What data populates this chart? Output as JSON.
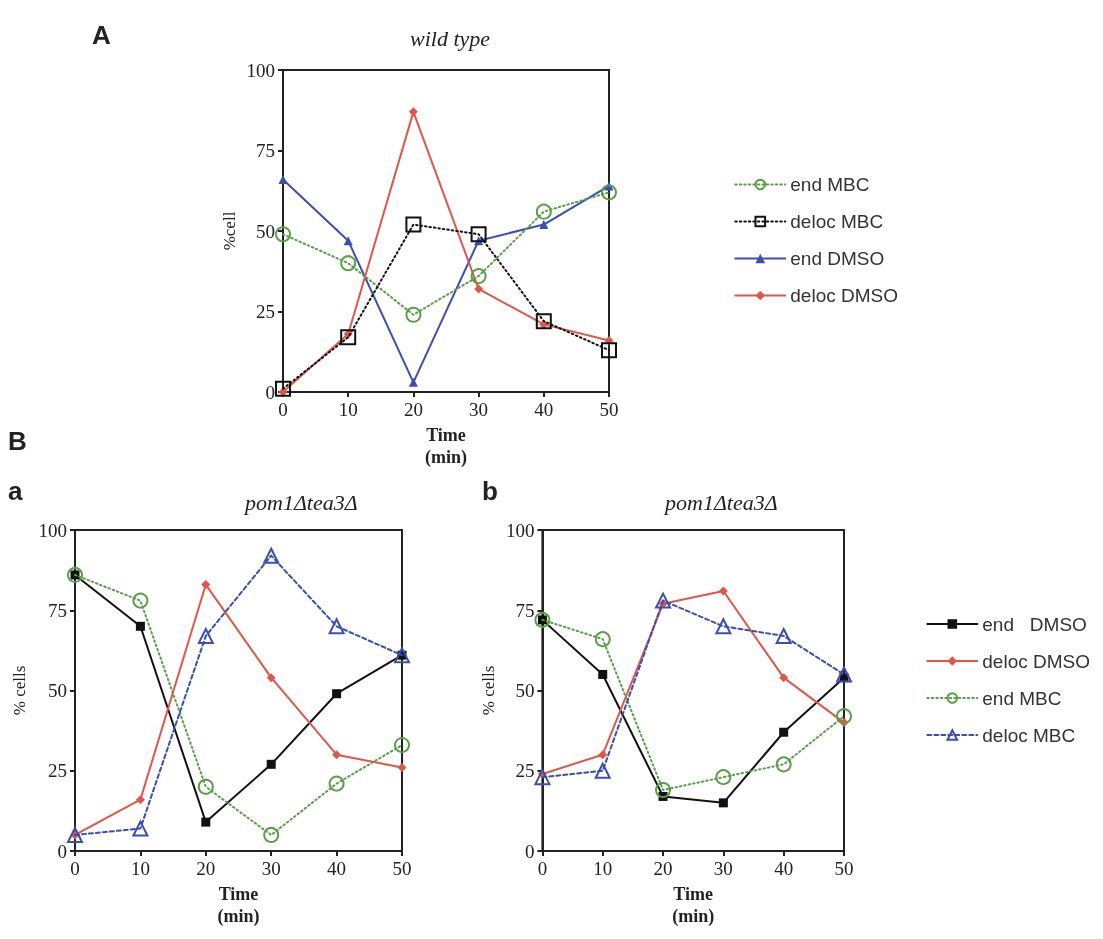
{
  "chart_data": [
    {
      "type": "line",
      "title": "wild type",
      "xlabel": "Time\n(min)",
      "ylabel": "%cell",
      "annotations": [
        "A"
      ],
      "x": [
        0,
        10,
        20,
        30,
        40,
        50
      ],
      "xlim": [
        0,
        50
      ],
      "xticks": [
        0,
        10,
        20,
        30,
        40,
        50
      ],
      "ylim": [
        0,
        100
      ],
      "yticks": [
        0,
        25,
        50,
        75,
        100
      ],
      "grid": false,
      "legend": "right",
      "series": [
        {
          "name": "end MBC",
          "color": "#5a9e4a",
          "marker": "circle",
          "line_style": "dotted",
          "values": [
            49,
            40,
            24,
            36,
            56,
            62
          ]
        },
        {
          "name": "deloc MBC",
          "color": "#111111",
          "marker": "square",
          "line_style": "dotted",
          "values": [
            1,
            17,
            52,
            49,
            22,
            13
          ]
        },
        {
          "name": "end DMSO",
          "color": "#3a4fb0",
          "marker": "triangle",
          "line_style": "solid",
          "values": [
            66,
            47,
            3,
            47,
            52,
            64
          ]
        },
        {
          "name": "deloc DMSO",
          "color": "#e0574a",
          "marker": "diamond",
          "line_style": "solid",
          "values": [
            0,
            18,
            87,
            32,
            21,
            16
          ]
        }
      ]
    },
    {
      "type": "line",
      "title": "pom1Δtea3Δ",
      "xlabel": "Time\n(min)",
      "ylabel": "% cells",
      "annotations": [
        "B",
        "a"
      ],
      "x": [
        0,
        10,
        20,
        30,
        40,
        50
      ],
      "xlim": [
        0,
        50
      ],
      "xticks": [
        0,
        10,
        20,
        30,
        40,
        50
      ],
      "ylim": [
        0,
        100
      ],
      "yticks": [
        0,
        25,
        50,
        75,
        100
      ],
      "grid": false,
      "legend": false,
      "series": [
        {
          "color": "#111111",
          "marker": "square",
          "line_style": "solid",
          "values": [
            86,
            70,
            9,
            27,
            49,
            61
          ]
        },
        {
          "color": "#e0574a",
          "marker": "diamond",
          "line_style": "solid",
          "values": [
            5,
            16,
            83,
            54,
            30,
            26
          ]
        },
        {
          "color": "#5a9e4a",
          "marker": "circle",
          "line_style": "dotted",
          "values": [
            86,
            78,
            20,
            5,
            21,
            33
          ]
        },
        {
          "color": "#3a4fb0",
          "marker": "triangle",
          "line_style": "dashed",
          "values": [
            5,
            7,
            67,
            92,
            70,
            61
          ]
        }
      ]
    },
    {
      "type": "line",
      "title": "pom1Δtea3Δ",
      "xlabel": "Time\n(min)",
      "ylabel": "% cells",
      "annotations": [
        "b"
      ],
      "x": [
        0,
        10,
        20,
        30,
        40,
        50
      ],
      "xlim": [
        0,
        50
      ],
      "xticks": [
        0,
        10,
        20,
        30,
        40,
        50
      ],
      "ylim": [
        0,
        100
      ],
      "yticks": [
        0,
        25,
        50,
        75,
        100
      ],
      "grid": false,
      "legend": "right",
      "series": [
        {
          "name": "end   DMSO",
          "color": "#111111",
          "marker": "square",
          "line_style": "solid",
          "values": [
            72,
            55,
            17,
            15,
            37,
            54
          ]
        },
        {
          "name": "deloc DMSO",
          "color": "#e0574a",
          "marker": "diamond",
          "line_style": "solid",
          "values": [
            24,
            30,
            77,
            81,
            54,
            40
          ]
        },
        {
          "name": "end MBC",
          "color": "#5a9e4a",
          "marker": "circle",
          "line_style": "dotted",
          "values": [
            72,
            66,
            19,
            23,
            27,
            42
          ]
        },
        {
          "name": "deloc MBC",
          "color": "#3a4fb0",
          "marker": "triangle",
          "line_style": "dashed",
          "values": [
            23,
            25,
            78,
            70,
            67,
            55
          ]
        }
      ]
    }
  ]
}
